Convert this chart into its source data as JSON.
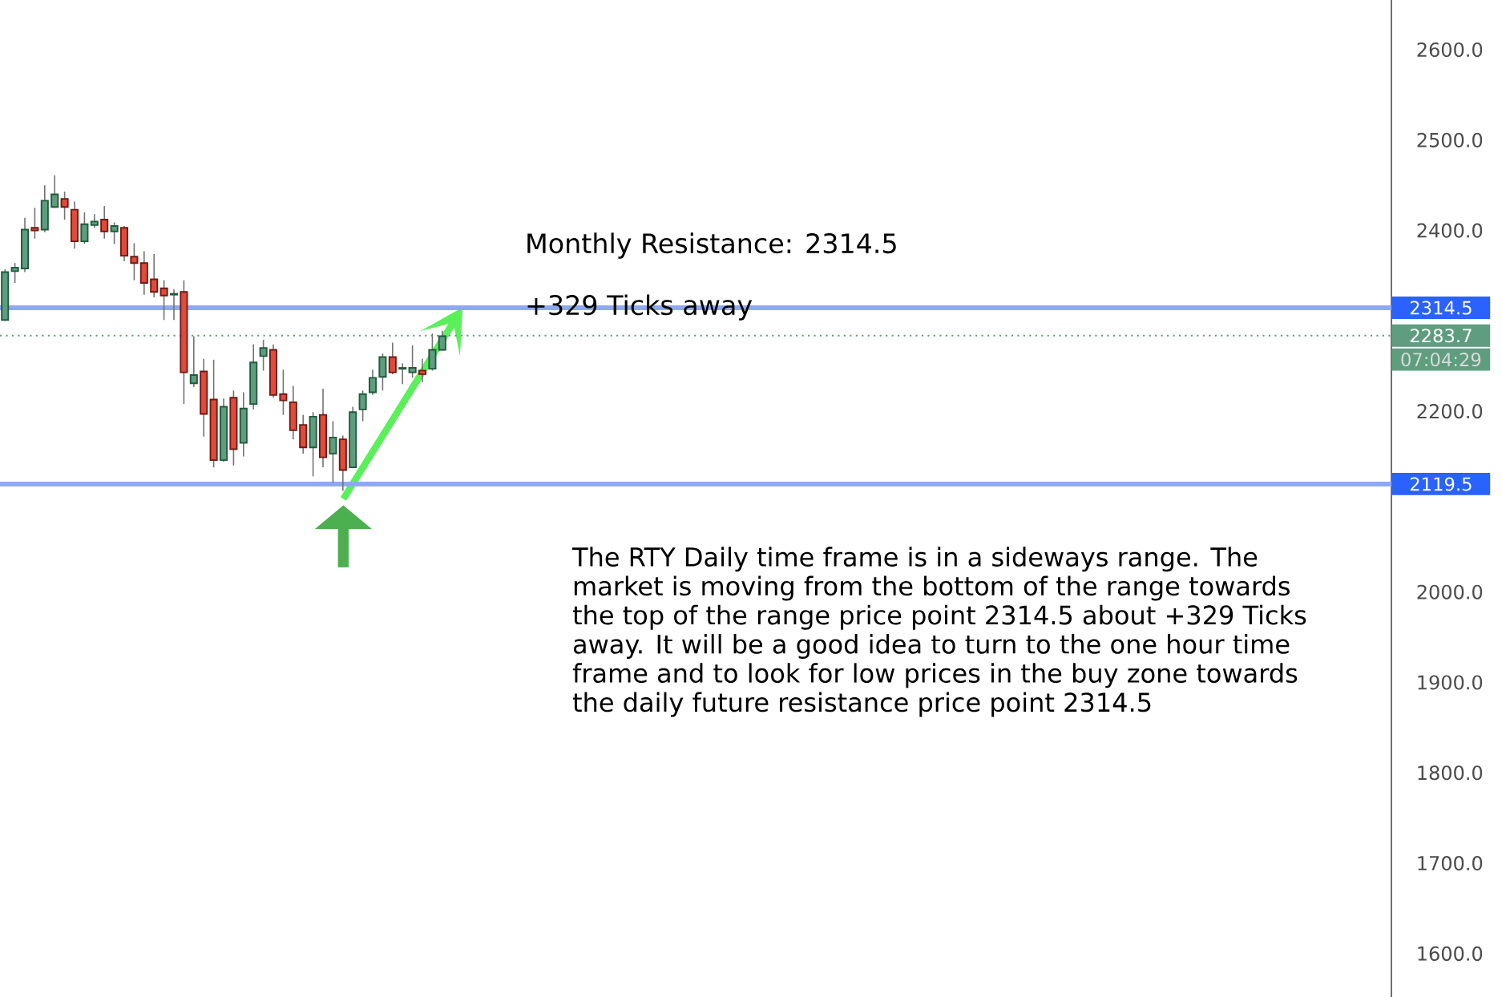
{
  "chart_data": {
    "type": "candlestick",
    "categories": [
      null,
      null,
      null,
      null,
      null,
      null,
      null,
      null,
      null,
      null,
      null,
      null,
      null,
      null,
      null,
      null,
      null,
      null,
      null,
      null,
      null,
      null,
      null,
      null,
      null,
      null,
      null,
      null,
      null,
      null,
      null,
      null,
      null,
      null,
      null,
      null,
      null,
      null,
      null,
      null,
      null,
      null,
      null,
      null,
      null,
      null,
      null,
      null,
      null,
      null,
      null,
      null,
      null,
      null,
      null,
      null,
      null,
      null,
      null,
      null,
      null,
      null,
      null,
      null,
      null,
      null,
      null,
      null,
      null,
      null,
      null,
      null,
      null,
      null,
      null,
      null,
      null,
      null,
      null,
      null,
      null,
      null,
      null,
      null,
      null,
      null,
      null,
      null,
      null,
      null,
      null,
      null,
      null,
      null,
      null,
      null,
      null,
      null,
      null,
      null,
      null,
      null,
      null,
      null,
      null,
      null,
      null,
      null,
      null,
      null,
      null,
      null,
      null,
      null,
      null,
      null,
      null,
      null,
      null,
      null,
      null,
      null,
      null,
      null,
      null,
      null,
      null,
      null,
      null,
      null,
      null,
      null,
      null,
      null,
      null,
      null,
      null,
      null,
      null,
      null
    ],
    "ohlc": [
      [
        2301,
        2357,
        2300,
        2354
      ],
      [
        2355,
        2364,
        2342,
        2359
      ],
      [
        2358,
        2414,
        2354,
        2401
      ],
      [
        2403,
        2425,
        2391,
        2400
      ],
      [
        2401,
        2450,
        2398,
        2433
      ],
      [
        2426,
        2461,
        2425,
        2440
      ],
      [
        2435,
        2443,
        2412,
        2426
      ],
      [
        2423,
        2432,
        2380,
        2388
      ],
      [
        2388,
        2420,
        2385,
        2407
      ],
      [
        2406,
        2418,
        2403,
        2410
      ],
      [
        2412,
        2427,
        2391,
        2399
      ],
      [
        2399,
        2409,
        2385,
        2405
      ],
      [
        2403,
        2405,
        2366,
        2372
      ],
      [
        2371,
        2386,
        2345,
        2364
      ],
      [
        2364,
        2377,
        2329,
        2342
      ],
      [
        2346,
        2374,
        2326,
        2332
      ],
      [
        2336,
        2345,
        2301,
        2328
      ],
      [
        2329,
        2335,
        2301,
        2330
      ],
      [
        2332,
        2345,
        2208,
        2243
      ],
      [
        2231,
        2283,
        2227,
        2240
      ],
      [
        2244,
        2258,
        2172,
        2197
      ],
      [
        2213,
        2257,
        2138,
        2146
      ],
      [
        2146,
        2214,
        2144,
        2205
      ],
      [
        2215,
        2223,
        2140,
        2158
      ],
      [
        2165,
        2221,
        2150,
        2203
      ],
      [
        2208,
        2274,
        2202,
        2254
      ],
      [
        2261,
        2279,
        2245,
        2270
      ],
      [
        2268,
        2274,
        2215,
        2218
      ],
      [
        2219,
        2246,
        2196,
        2212
      ],
      [
        2210,
        2228,
        2169,
        2179
      ],
      [
        2185,
        2196,
        2153,
        2160
      ],
      [
        2160,
        2199,
        2128,
        2194
      ],
      [
        2196,
        2225,
        2138,
        2149
      ],
      [
        2153,
        2189,
        2121,
        2171
      ],
      [
        2169,
        2173,
        2112,
        2135
      ],
      [
        2138,
        2205,
        2137,
        2199
      ],
      [
        2202,
        2223,
        2189,
        2219
      ],
      [
        2221,
        2246,
        2218,
        2237
      ],
      [
        2238,
        2264,
        2223,
        2260
      ],
      [
        2260,
        2276,
        2241,
        2243
      ],
      [
        2247,
        2253,
        2230,
        2248
      ],
      [
        2243,
        2273,
        2237,
        2248
      ],
      [
        2245,
        2258,
        2232,
        2241
      ],
      [
        2247,
        2286,
        2245,
        2268
      ],
      [
        2268,
        2289,
        2267,
        2283
      ],
      null,
      null,
      null,
      null,
      null,
      null,
      null,
      null,
      null,
      null,
      null,
      null,
      null,
      null,
      null,
      null,
      null,
      null,
      null,
      null,
      null,
      null,
      null,
      null,
      null,
      null,
      null,
      null,
      null,
      null,
      null,
      null,
      null,
      null,
      null,
      null,
      null,
      null,
      null,
      null,
      null,
      null,
      null,
      null,
      null,
      null,
      null,
      null,
      null,
      null,
      null,
      null,
      null,
      null,
      null,
      null,
      null,
      null,
      null,
      null,
      null,
      null,
      null,
      null,
      null,
      null,
      null,
      null,
      null,
      null,
      null,
      null,
      null,
      null,
      null,
      null,
      null,
      null,
      null,
      null,
      null,
      null,
      null,
      null,
      null,
      null,
      null,
      null,
      null,
      null,
      null,
      null,
      null,
      null,
      null
    ],
    "ylim": [
      1552,
      2655
    ],
    "yticks": [
      {
        "value": 1600,
        "label": "1600.0"
      },
      {
        "value": 1700,
        "label": "1700.0"
      },
      {
        "value": 1800,
        "label": "1800.0"
      },
      {
        "value": 1900,
        "label": "1900.0"
      },
      {
        "value": 2000,
        "label": "2000.0"
      },
      {
        "value": 2200,
        "label": "2200.0"
      },
      {
        "value": 2400,
        "label": "2400.0"
      },
      {
        "value": 2500,
        "label": "2500.0"
      },
      {
        "value": 2600,
        "label": "2600.0"
      }
    ],
    "tick_labels": "y",
    "ref_lines": [
      {
        "axis": "y",
        "value": 2314.5,
        "label": "2314.5",
        "color": "#8fa8f5",
        "line_style": "solid"
      },
      {
        "axis": "y",
        "value": 2119.5,
        "label": "2119.5",
        "color": "#8fa8f5",
        "line_style": "solid"
      },
      {
        "axis": "y",
        "value": 2283.7,
        "label": "2283.7",
        "color": "#5e9e7e",
        "line_style": "dotted"
      }
    ],
    "annotations": [
      "Monthly Resistance: 2314.5",
      "+329 Ticks away",
      "The RTY Daily time frame is in a sideways range. The market is moving from the bottom of the range towards the top of the range price point 2314.5 about +329 Ticks away. It will be a good idea to turn to the one hour time frame and to look for low prices in the buy zone towards the daily future resistance price point 2314.5",
      "07:04:29"
    ]
  }
}
